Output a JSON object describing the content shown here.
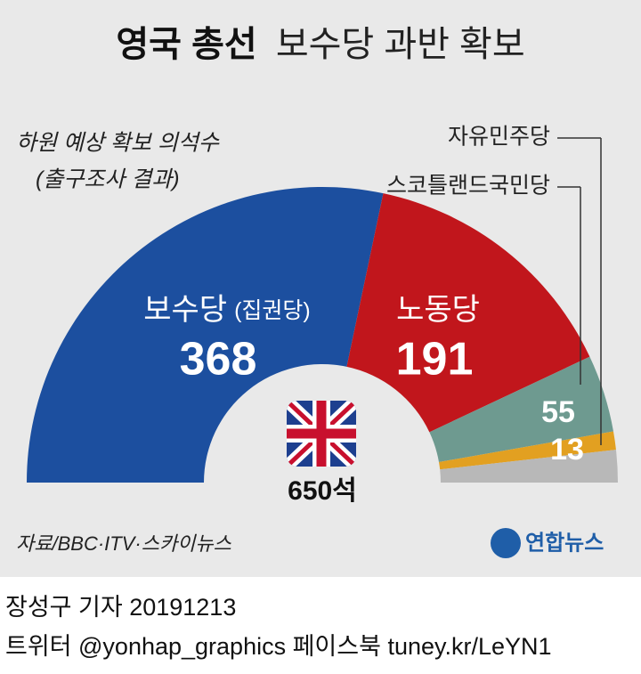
{
  "chart_data": {
    "type": "half-donut",
    "title": [
      "영국 총선",
      "보수당 과반 확보"
    ],
    "subtitle": [
      "하원 예상 확보 의석수",
      "(출구조사 결과)"
    ],
    "categories": [
      "보수당",
      "노동당",
      "스코틀랜드국민당",
      "자유민주당",
      null
    ],
    "ruling_party_note": "(집권당)",
    "values": [
      368,
      191,
      55,
      13,
      23
    ],
    "colors": [
      "#1c4f9f",
      "#c1161c",
      "#6e9a90",
      "#e2a021",
      "#b8b8b8"
    ],
    "total_label": "650석",
    "source": "자료/BBC·ITV·스카이뉴스",
    "logo": "연합뉴스"
  },
  "footer": {
    "byline": "장성구 기자  20191213",
    "social": "트위터 @yonhap_graphics  페이스북 tuney.kr/LeYN1"
  }
}
